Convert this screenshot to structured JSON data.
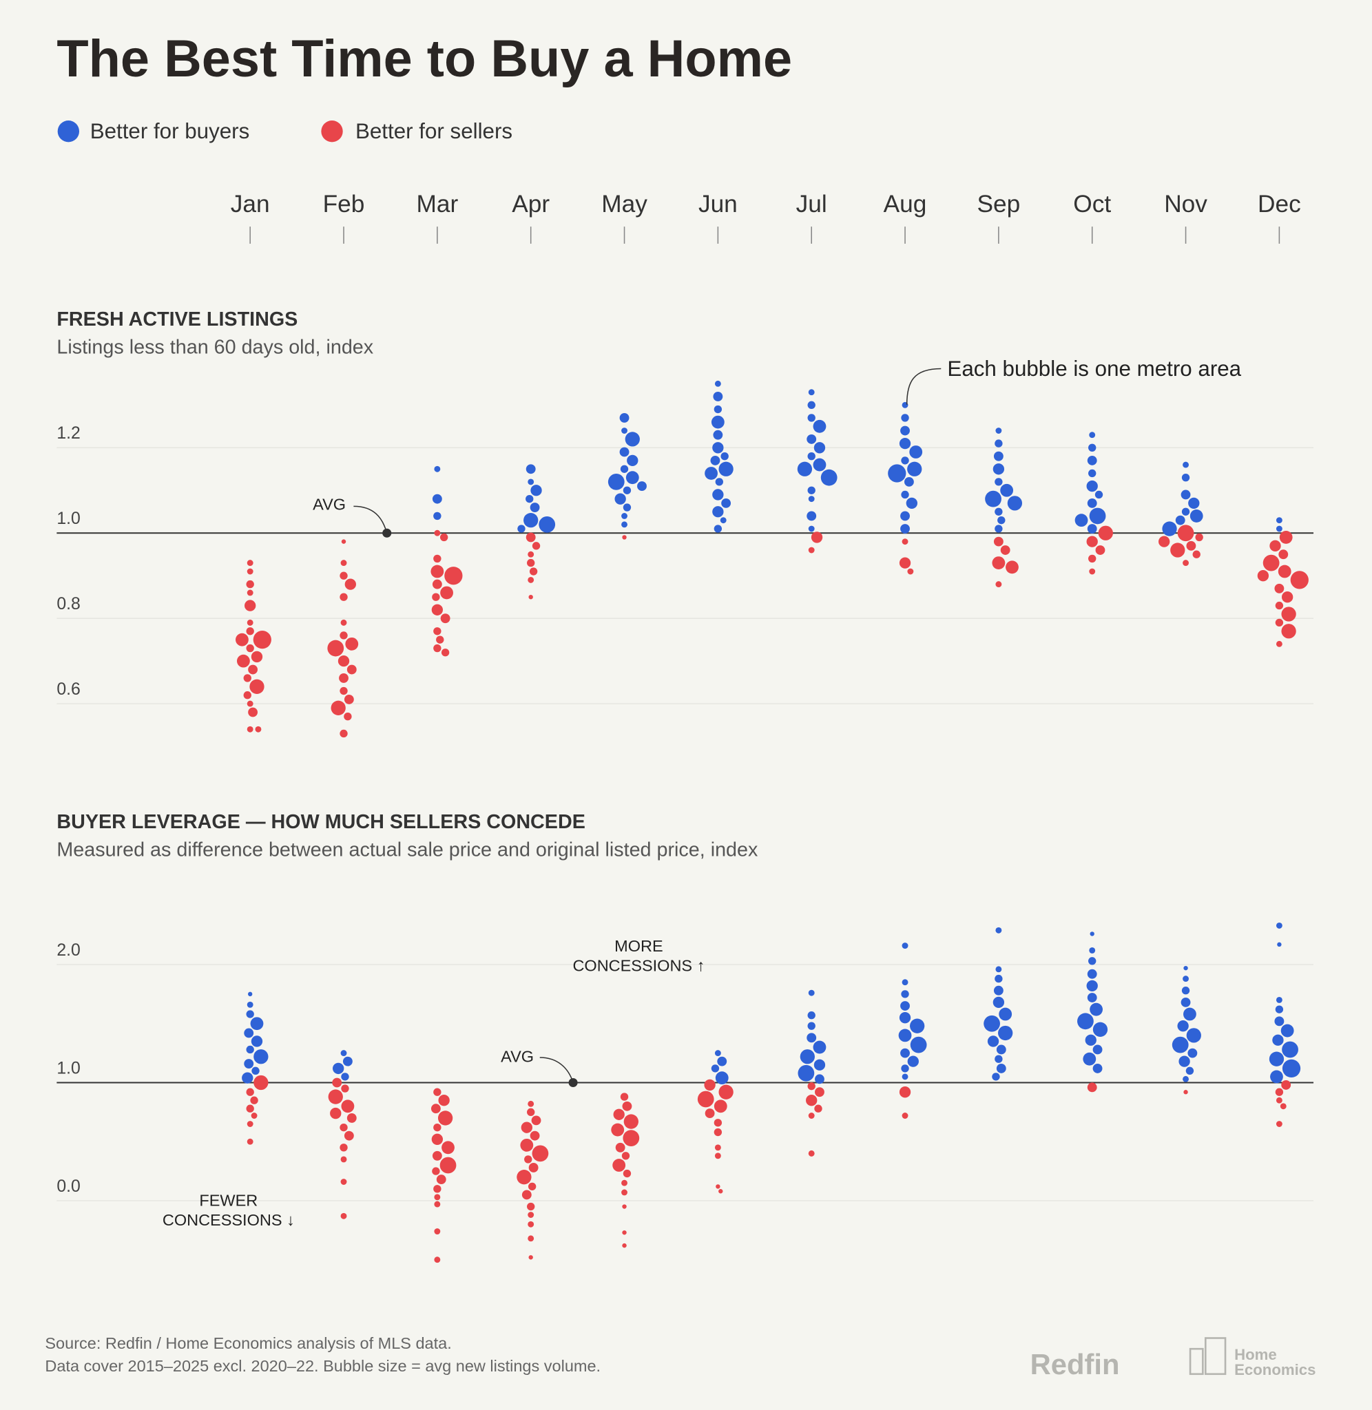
{
  "title": "The Best Time to Buy a Home",
  "legend": [
    {
      "name": "Better for buyers",
      "color": "#2f62d6"
    },
    {
      "name": "Better for sellers",
      "color": "#e8454a"
    }
  ],
  "months": [
    "Jan",
    "Feb",
    "Mar",
    "Apr",
    "May",
    "Jun",
    "Jul",
    "Aug",
    "Sep",
    "Oct",
    "Nov",
    "Dec"
  ],
  "chart_data": [
    {
      "type": "beeswarm",
      "title": "FRESH ACTIVE LISTINGS",
      "subtitle": "Listings less than 60 days old, index",
      "ylim": [
        0.5,
        1.4
      ],
      "yticks": [
        0.6,
        0.8,
        {
          "value": 1,
          "label": "1.0"
        },
        1.2
      ],
      "avg": 1,
      "avg_label": "AVG",
      "grid": true,
      "annotation": "Each bubble is one metro area",
      "values": [
        [
          0.93,
          0.91,
          0.88,
          0.86,
          0.83,
          0.79,
          0.77,
          0.75,
          0.75,
          0.73,
          0.71,
          0.7,
          0.68,
          0.66,
          0.64,
          0.62,
          0.6,
          0.58,
          0.54,
          0.54
        ],
        [
          0.98,
          0.93,
          0.9,
          0.88,
          0.85,
          0.79,
          0.76,
          0.74,
          0.73,
          0.7,
          0.68,
          0.66,
          0.63,
          0.61,
          0.59,
          0.57,
          0.53
        ],
        [
          1.15,
          1.08,
          1.04,
          1.0,
          0.99,
          0.94,
          0.91,
          0.9,
          0.88,
          0.86,
          0.85,
          0.82,
          0.8,
          0.77,
          0.75,
          0.73,
          0.72
        ],
        [
          1.15,
          1.12,
          1.1,
          1.08,
          1.06,
          1.03,
          1.02,
          1.01,
          0.99,
          0.97,
          0.95,
          0.93,
          0.91,
          0.89,
          0.85
        ],
        [
          1.27,
          1.24,
          1.22,
          1.19,
          1.17,
          1.15,
          1.13,
          1.12,
          1.11,
          1.1,
          1.08,
          1.06,
          1.04,
          1.02,
          0.99
        ],
        [
          1.35,
          1.32,
          1.29,
          1.26,
          1.23,
          1.2,
          1.18,
          1.17,
          1.15,
          1.14,
          1.12,
          1.09,
          1.07,
          1.05,
          1.03,
          1.01
        ],
        [
          1.33,
          1.3,
          1.27,
          1.25,
          1.22,
          1.2,
          1.18,
          1.16,
          1.15,
          1.13,
          1.1,
          1.08,
          1.04,
          1.01,
          0.99,
          0.96
        ],
        [
          1.3,
          1.27,
          1.24,
          1.21,
          1.19,
          1.17,
          1.15,
          1.14,
          1.12,
          1.09,
          1.07,
          1.04,
          1.01,
          0.98,
          0.93,
          0.91
        ],
        [
          1.24,
          1.21,
          1.18,
          1.15,
          1.12,
          1.1,
          1.08,
          1.07,
          1.05,
          1.03,
          1.01,
          0.98,
          0.96,
          0.93,
          0.92,
          0.88
        ],
        [
          1.23,
          1.2,
          1.17,
          1.14,
          1.11,
          1.09,
          1.07,
          1.04,
          1.03,
          1.01,
          1.0,
          0.98,
          0.96,
          0.94,
          0.91
        ],
        [
          1.16,
          1.13,
          1.09,
          1.07,
          1.05,
          1.04,
          1.03,
          1.01,
          1.0,
          0.99,
          0.98,
          0.97,
          0.96,
          0.95,
          0.93
        ],
        [
          1.03,
          1.01,
          0.99,
          0.97,
          0.95,
          0.93,
          0.91,
          0.9,
          0.89,
          0.87,
          0.85,
          0.83,
          0.81,
          0.79,
          0.77,
          0.74
        ]
      ],
      "sizes": [
        [
          2,
          2,
          3,
          2,
          5,
          2,
          3,
          9,
          6,
          3,
          5,
          6,
          4,
          3,
          7,
          3,
          2,
          4,
          2,
          2
        ],
        [
          1,
          2,
          3,
          5,
          3,
          2,
          3,
          6,
          8,
          5,
          4,
          4,
          3,
          4,
          7,
          3,
          3
        ],
        [
          2,
          4,
          3,
          2,
          3,
          3,
          6,
          9,
          4,
          6,
          3,
          5,
          4,
          3,
          3,
          3,
          3
        ],
        [
          4,
          2,
          5,
          3,
          4,
          7,
          8,
          3,
          4,
          3,
          2,
          3,
          3,
          2,
          1
        ],
        [
          4,
          2,
          7,
          4,
          5,
          3,
          6,
          8,
          4,
          3,
          5,
          3,
          2,
          2,
          1
        ],
        [
          2,
          4,
          3,
          6,
          4,
          5,
          3,
          4,
          7,
          6,
          3,
          5,
          4,
          5,
          2,
          3
        ],
        [
          2,
          3,
          3,
          6,
          4,
          5,
          3,
          6,
          7,
          8,
          3,
          2,
          4,
          2,
          5,
          2
        ],
        [
          2,
          3,
          4,
          5,
          6,
          3,
          7,
          9,
          4,
          3,
          5,
          4,
          4,
          2,
          5,
          2
        ],
        [
          2,
          3,
          4,
          5,
          3,
          6,
          8,
          7,
          3,
          3,
          3,
          4,
          4,
          6,
          6,
          2
        ],
        [
          2,
          3,
          4,
          3,
          5,
          3,
          4,
          8,
          6,
          4,
          7,
          5,
          4,
          3,
          2
        ],
        [
          2,
          3,
          4,
          5,
          3,
          6,
          4,
          7,
          8,
          3,
          5,
          4,
          7,
          3,
          2
        ],
        [
          2,
          2,
          6,
          5,
          4,
          8,
          6,
          5,
          9,
          4,
          5,
          3,
          7,
          3,
          7,
          2
        ]
      ]
    },
    {
      "type": "beeswarm",
      "title": "BUYER LEVERAGE — HOW MUCH SELLERS CONCEDE",
      "subtitle": "Measured as difference between actual sale price and original listed price, index",
      "ylim": [
        -0.6,
        2.5
      ],
      "yticks": [
        {
          "value": 0,
          "label": "0.0"
        },
        {
          "value": 1,
          "label": "1.0"
        },
        {
          "value": 2,
          "label": "2.0"
        }
      ],
      "avg": 1,
      "avg_label": "AVG",
      "grid": true,
      "annotation_more": [
        "MORE",
        "CONCESSIONS ↑"
      ],
      "annotation_fewer": [
        "FEWER",
        "CONCESSIONS ↓"
      ],
      "values": [
        [
          1.75,
          1.66,
          1.58,
          1.5,
          1.42,
          1.35,
          1.28,
          1.22,
          1.16,
          1.1,
          1.04,
          1.0,
          0.92,
          0.85,
          0.78,
          0.72,
          0.65,
          0.5
        ],
        [
          1.25,
          1.18,
          1.12,
          1.05,
          1.0,
          0.95,
          0.88,
          0.8,
          0.74,
          0.7,
          0.62,
          0.55,
          0.45,
          0.35,
          0.16,
          -0.13
        ],
        [
          0.92,
          0.85,
          0.78,
          0.7,
          0.62,
          0.52,
          0.45,
          0.38,
          0.3,
          0.25,
          0.18,
          0.1,
          0.03,
          -0.03,
          -0.26,
          -0.5
        ],
        [
          0.82,
          0.75,
          0.68,
          0.62,
          0.55,
          0.47,
          0.4,
          0.35,
          0.28,
          0.2,
          0.12,
          0.05,
          -0.05,
          -0.12,
          -0.2,
          -0.32,
          -0.48
        ],
        [
          0.88,
          0.8,
          0.73,
          0.67,
          0.6,
          0.53,
          0.45,
          0.38,
          0.3,
          0.23,
          0.15,
          0.07,
          -0.05,
          -0.27,
          -0.38
        ],
        [
          1.25,
          1.18,
          1.12,
          1.04,
          0.98,
          0.92,
          0.86,
          0.8,
          0.74,
          0.66,
          0.58,
          0.45,
          0.38,
          0.12,
          0.08
        ],
        [
          1.76,
          1.57,
          1.48,
          1.38,
          1.3,
          1.22,
          1.15,
          1.08,
          1.03,
          0.97,
          0.92,
          0.85,
          0.78,
          0.72,
          0.4
        ],
        [
          2.16,
          1.85,
          1.75,
          1.65,
          1.55,
          1.48,
          1.4,
          1.32,
          1.25,
          1.18,
          1.12,
          1.05,
          0.92,
          0.72
        ],
        [
          2.29,
          1.96,
          1.88,
          1.78,
          1.68,
          1.58,
          1.5,
          1.42,
          1.35,
          1.28,
          1.2,
          1.12,
          1.05
        ],
        [
          2.26,
          2.12,
          2.03,
          1.92,
          1.82,
          1.72,
          1.62,
          1.52,
          1.45,
          1.36,
          1.28,
          1.2,
          1.12,
          0.96
        ],
        [
          1.97,
          1.88,
          1.78,
          1.68,
          1.58,
          1.48,
          1.4,
          1.32,
          1.25,
          1.18,
          1.1,
          1.03,
          0.92
        ],
        [
          2.33,
          2.17,
          1.7,
          1.62,
          1.52,
          1.44,
          1.36,
          1.28,
          1.2,
          1.12,
          1.05,
          0.98,
          0.92,
          0.85,
          0.8,
          0.65
        ]
      ],
      "sizes": [
        [
          1,
          2,
          3,
          6,
          4,
          5,
          3,
          7,
          4,
          3,
          5,
          7,
          3,
          3,
          3,
          2,
          2,
          2
        ],
        [
          2,
          4,
          5,
          3,
          4,
          3,
          7,
          6,
          5,
          4,
          3,
          4,
          3,
          2,
          2,
          2
        ],
        [
          3,
          5,
          4,
          7,
          3,
          5,
          6,
          4,
          8,
          3,
          4,
          3,
          2,
          2,
          2,
          2
        ],
        [
          2,
          3,
          4,
          5,
          4,
          6,
          8,
          3,
          4,
          7,
          3,
          4,
          3,
          2,
          2,
          2,
          1
        ],
        [
          3,
          4,
          5,
          7,
          6,
          8,
          4,
          3,
          6,
          3,
          2,
          2,
          1,
          1,
          1
        ],
        [
          2,
          4,
          3,
          6,
          5,
          7,
          8,
          6,
          4,
          3,
          3,
          2,
          2,
          1,
          1
        ],
        [
          2,
          3,
          3,
          4,
          6,
          7,
          5,
          8,
          4,
          3,
          4,
          5,
          3,
          2,
          2
        ],
        [
          2,
          2,
          3,
          4,
          5,
          7,
          6,
          8,
          4,
          5,
          3,
          2,
          5,
          2
        ],
        [
          2,
          2,
          3,
          4,
          5,
          6,
          8,
          7,
          5,
          4,
          3,
          4,
          3
        ],
        [
          1,
          2,
          3,
          4,
          5,
          4,
          6,
          8,
          7,
          5,
          4,
          6,
          4,
          4
        ],
        [
          1,
          2,
          3,
          4,
          6,
          5,
          7,
          8,
          4,
          5,
          3,
          2,
          1
        ],
        [
          2,
          1,
          2,
          3,
          4,
          6,
          5,
          8,
          7,
          9,
          6,
          4,
          3,
          2,
          2,
          2
        ]
      ]
    }
  ],
  "footer": {
    "source": "Source: Redfin / Home Economics analysis of MLS data.",
    "note": "Data cover 2015–2025 excl. 2020–22. Bubble size = avg new listings volume.",
    "logo1": "Redfin",
    "logo2": [
      "Home",
      "Economics"
    ]
  }
}
